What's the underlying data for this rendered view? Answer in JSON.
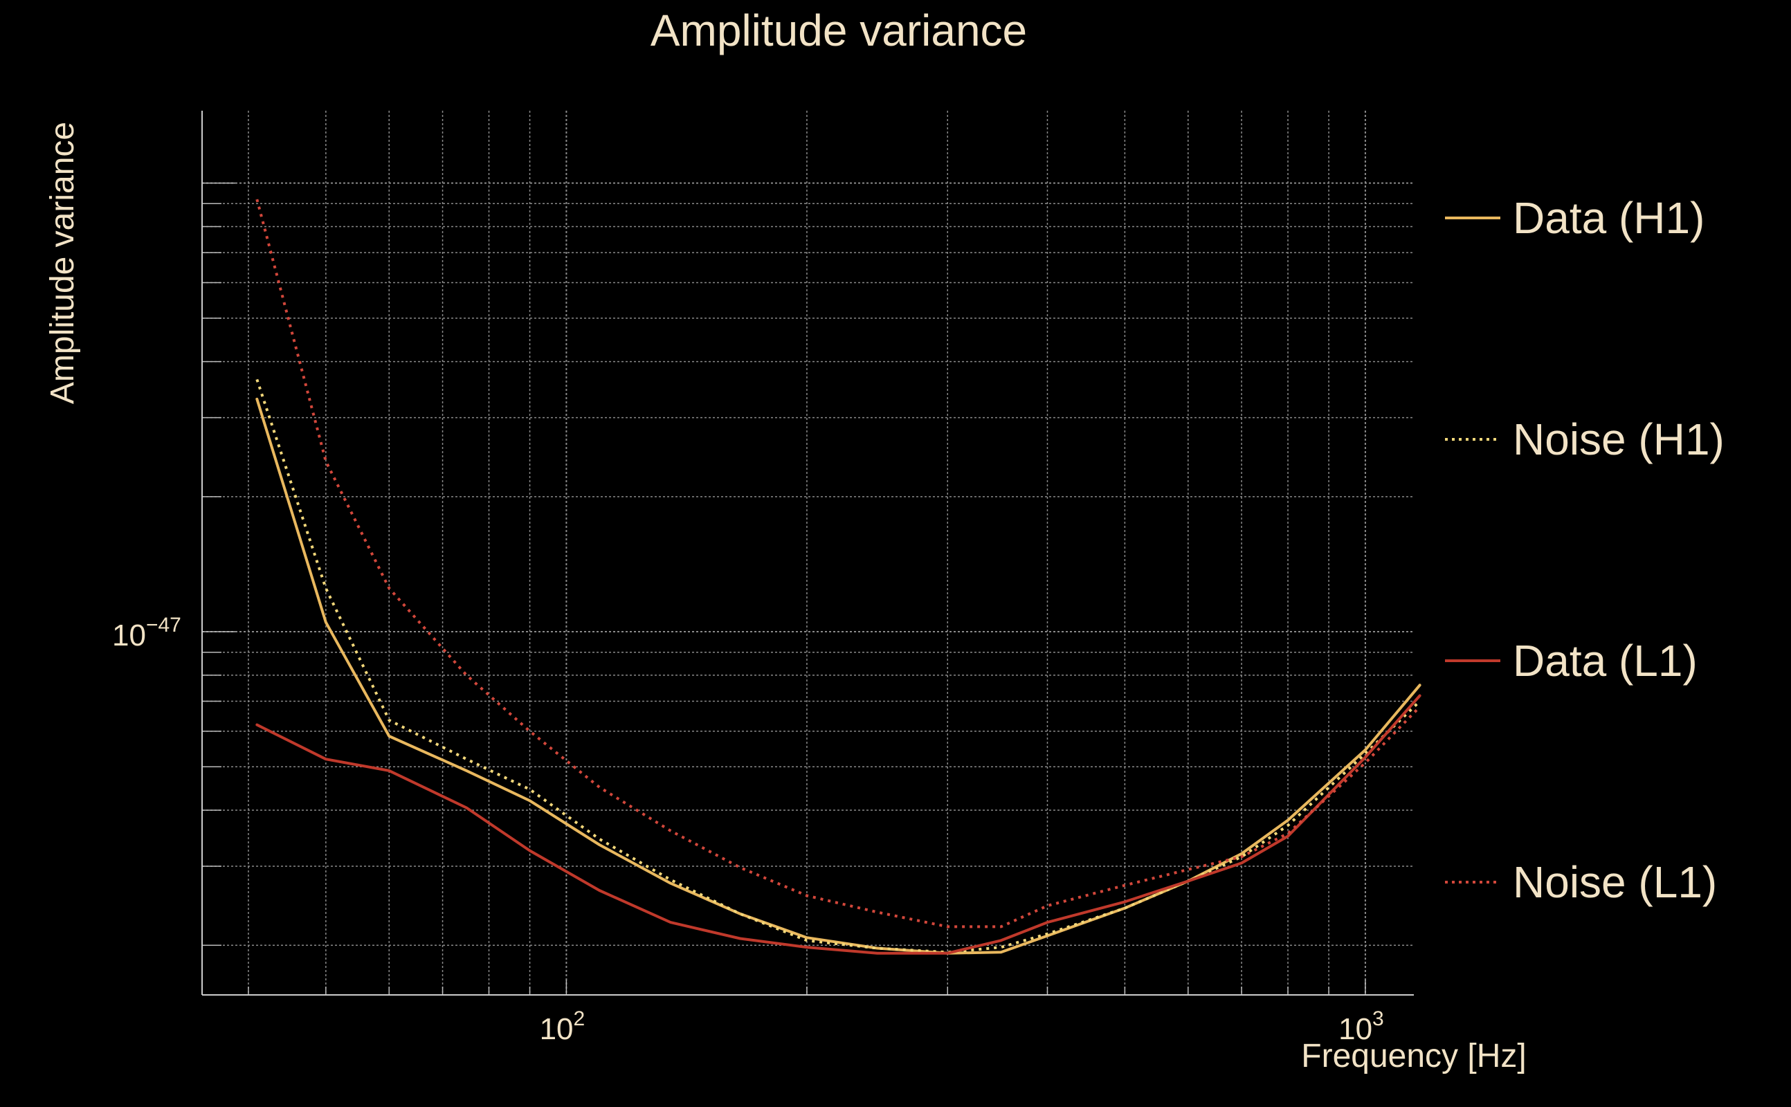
{
  "chart_data": {
    "type": "line",
    "title": "Amplitude variance",
    "xlabel": "Frequency [Hz]",
    "ylabel": "Amplitude variance",
    "xscale": "log",
    "yscale": "log",
    "xlim": [
      35,
      1150
    ],
    "ylim": [
      1.55e-48,
      1.45e-46
    ],
    "grid": true,
    "legend_position": "right",
    "x_ticks": [
      {
        "value": 100,
        "base": "10",
        "exp": "2"
      },
      {
        "value": 1000,
        "base": "10",
        "exp": "3"
      }
    ],
    "y_ticks": [
      {
        "value": 1e-47,
        "base": "10",
        "exp": "−47"
      }
    ],
    "x": [
      41,
      50,
      60,
      75,
      90,
      110,
      135,
      165,
      200,
      245,
      300,
      350,
      400,
      500,
      600,
      700,
      800,
      1000,
      1170
    ],
    "series": [
      {
        "name": "Data (H1)",
        "color": "#e9b85e",
        "style": "solid",
        "values": [
          3.3e-47,
          1.05e-47,
          5.85e-48,
          4.9e-48,
          4.2e-48,
          3.35e-48,
          2.75e-48,
          2.35e-48,
          2.08e-48,
          1.97e-48,
          1.92e-48,
          1.93e-48,
          2.1e-48,
          2.42e-48,
          2.78e-48,
          3.2e-48,
          3.8e-48,
          5.45e-48,
          7.6e-48
        ]
      },
      {
        "name": "Noise (H1)",
        "color": "#f2d77a",
        "style": "dotted",
        "values": [
          3.65e-47,
          1.25e-47,
          6.35e-48,
          5.2e-48,
          4.45e-48,
          3.45e-48,
          2.8e-48,
          2.35e-48,
          2.05e-48,
          1.97e-48,
          1.93e-48,
          1.98e-48,
          2.12e-48,
          2.42e-48,
          2.78e-48,
          3.15e-48,
          3.7e-48,
          5.35e-48,
          7e-48
        ]
      },
      {
        "name": "Data (L1)",
        "color": "#c0392b",
        "style": "solid",
        "values": [
          6.2e-48,
          5.2e-48,
          4.9e-48,
          4.05e-48,
          3.25e-48,
          2.65e-48,
          2.25e-48,
          2.07e-48,
          1.98e-48,
          1.92e-48,
          1.92e-48,
          2.05e-48,
          2.25e-48,
          2.5e-48,
          2.78e-48,
          3.05e-48,
          3.5e-48,
          5.25e-48,
          7.2e-48
        ]
      },
      {
        "name": "Noise (L1)",
        "color": "#d2473b",
        "style": "dotted",
        "values": [
          9.2e-47,
          2.4e-47,
          1.25e-47,
          8e-48,
          6e-48,
          4.5e-48,
          3.6e-48,
          2.98e-48,
          2.58e-48,
          2.37e-48,
          2.2e-48,
          2.2e-48,
          2.45e-48,
          2.72e-48,
          2.95e-48,
          3.15e-48,
          3.55e-48,
          5.1e-48,
          6.8e-48
        ]
      }
    ]
  }
}
